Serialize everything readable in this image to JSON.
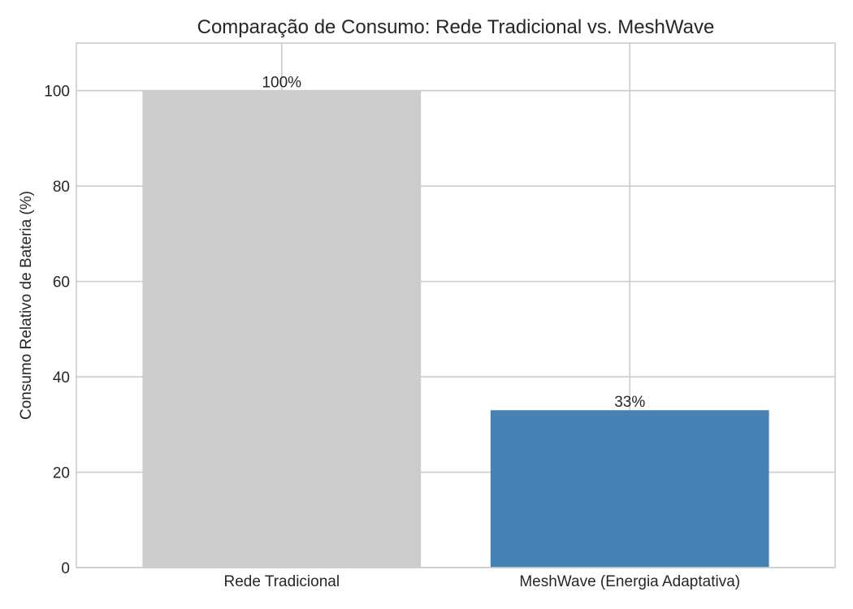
{
  "chart_data": {
    "type": "bar",
    "title": "Comparação de Consumo: Rede Tradicional vs. MeshWave",
    "xlabel": "",
    "ylabel": "Consumo Relativo de Bateria (%)",
    "categories": [
      "Rede Tradicional",
      "MeshWave (Energia Adaptativa)"
    ],
    "values": [
      100,
      33
    ],
    "data_labels": [
      "100%",
      "33%"
    ],
    "colors": [
      "#cccccc",
      "#4682b4"
    ],
    "ylim": [
      0,
      110
    ],
    "yticks": [
      0,
      20,
      40,
      60,
      80,
      100
    ],
    "grid": true,
    "legend": "none"
  }
}
